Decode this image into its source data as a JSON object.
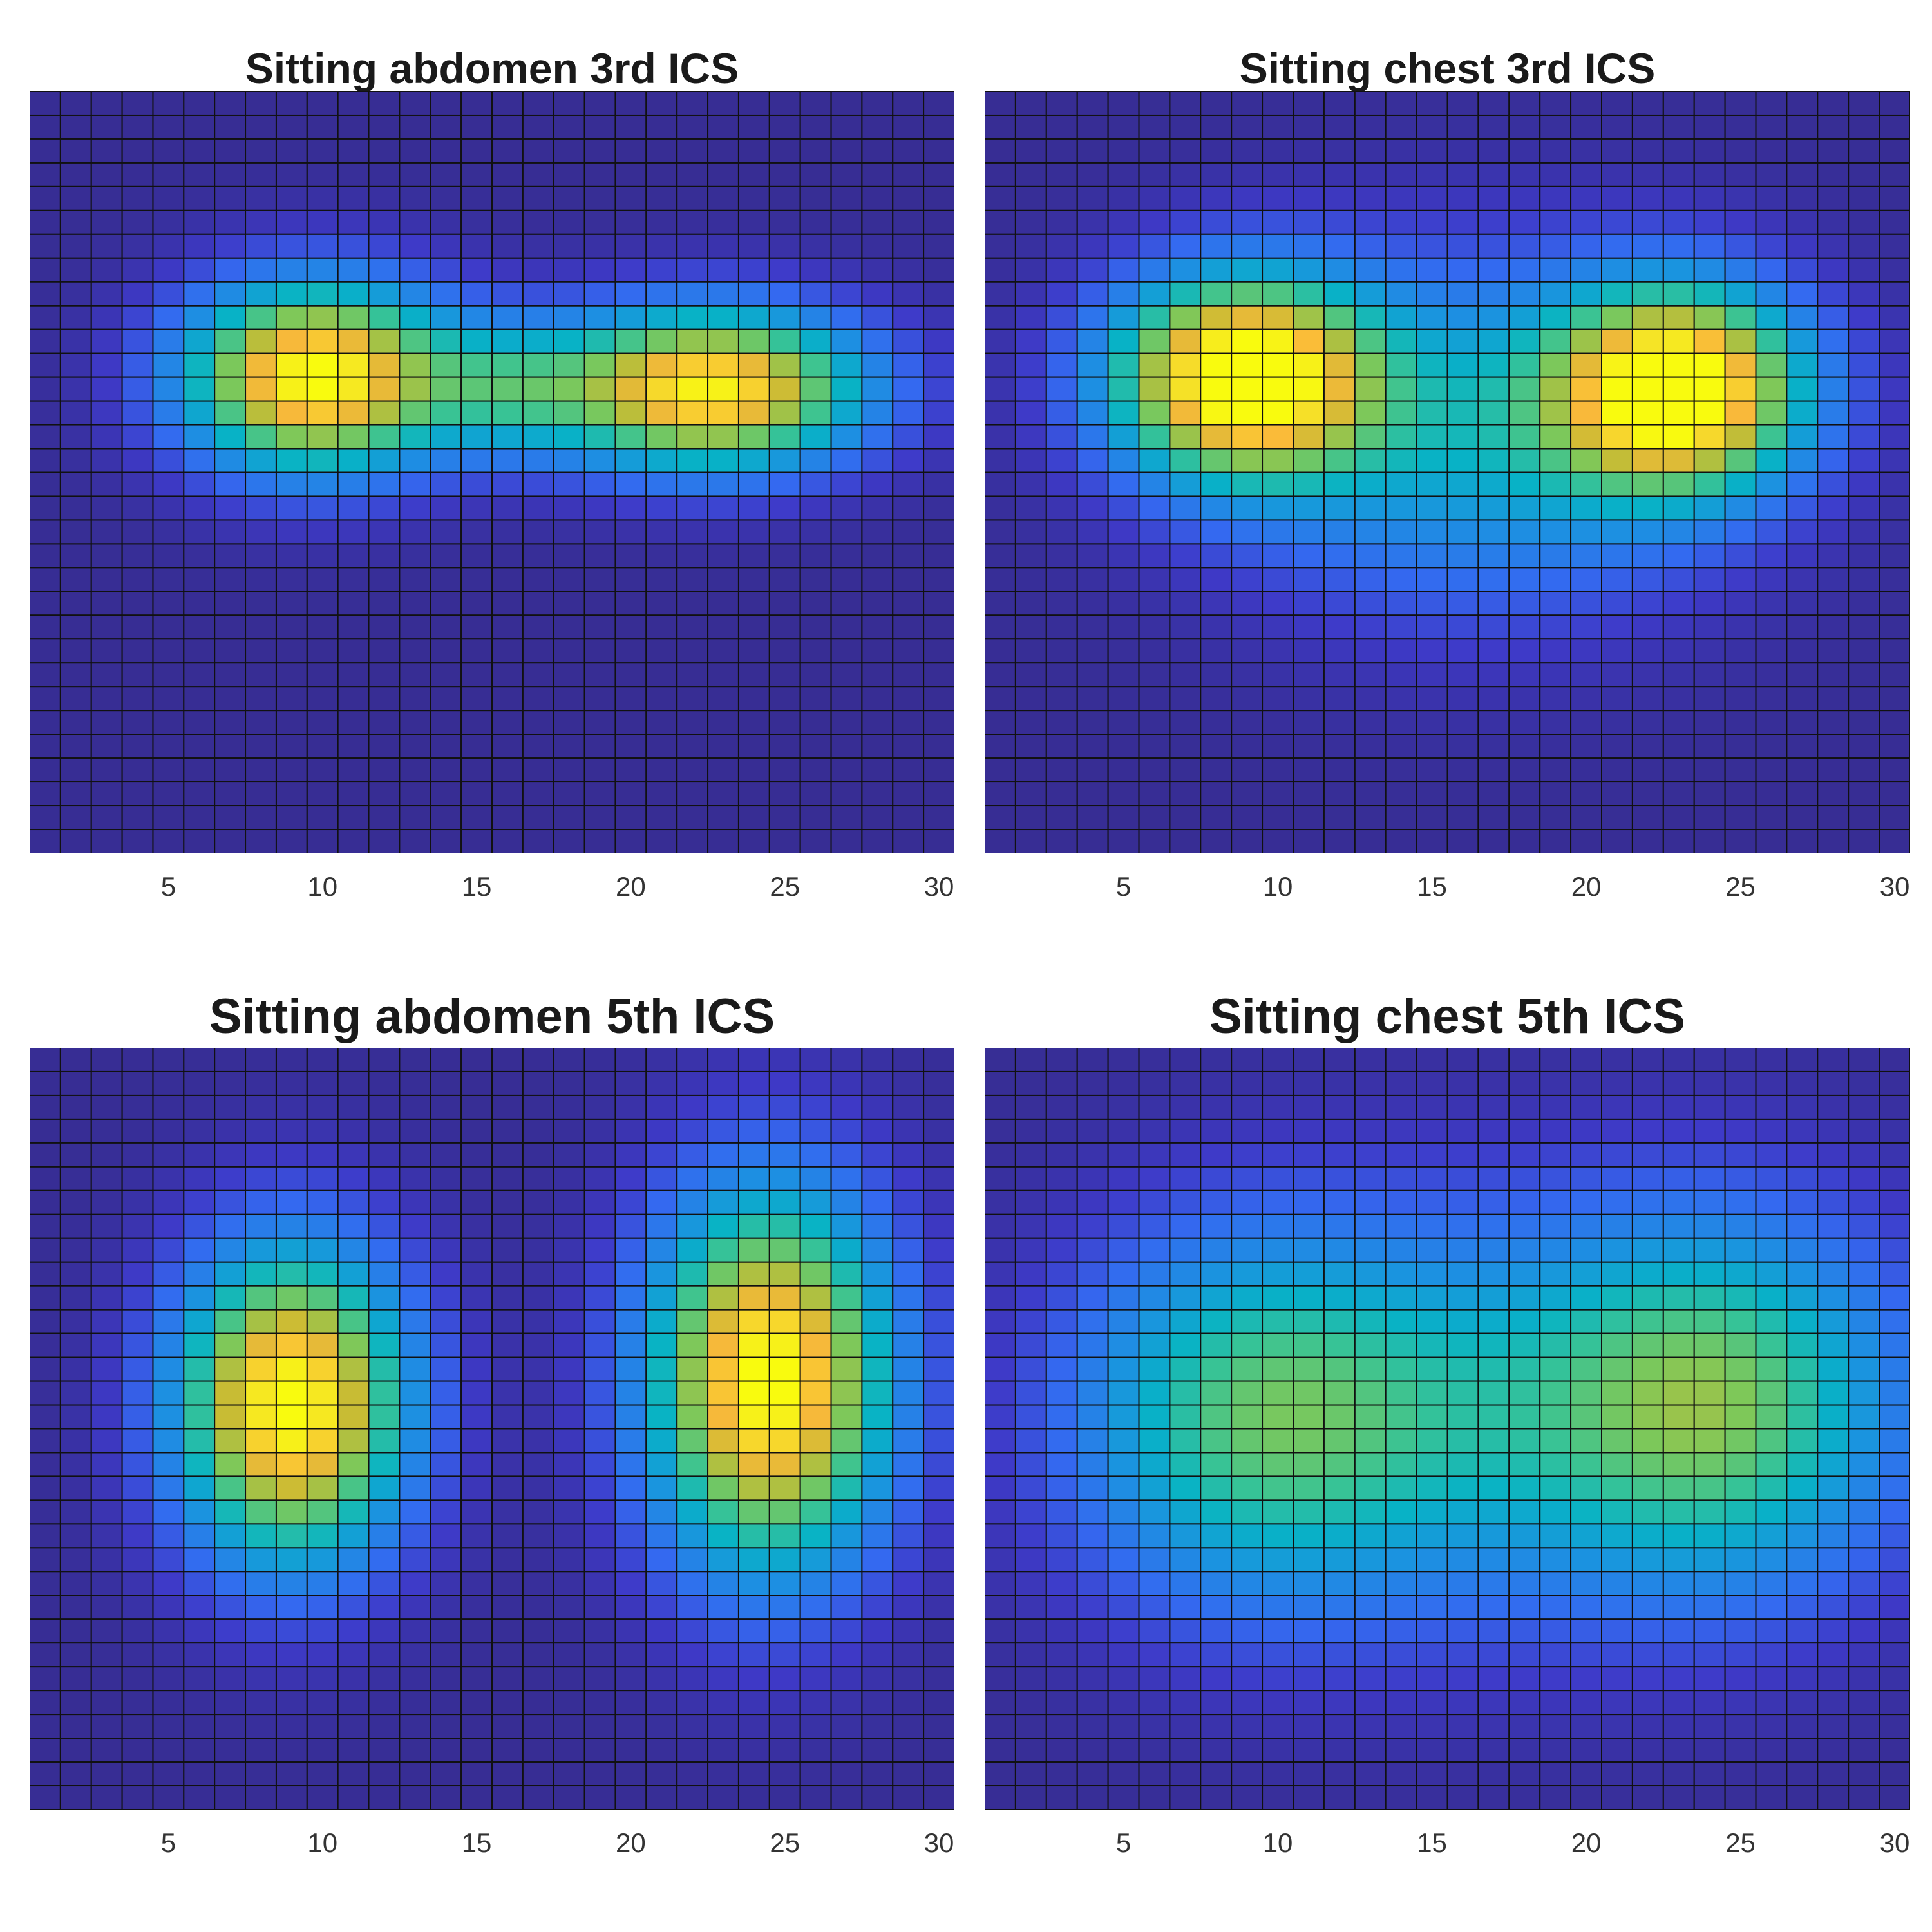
{
  "chart_data": [
    {
      "type": "heatmap",
      "title": "Sitting abdomen 3rd ICS",
      "xlim": [
        0.5,
        30.5
      ],
      "ylim": [
        0.5,
        32.5
      ],
      "grid_size": [
        32,
        30
      ],
      "x_ticks": [
        5,
        10,
        15,
        20,
        25,
        30
      ],
      "x_tick_labels": [
        "5",
        "10",
        "15",
        "20",
        "25",
        "30"
      ],
      "grid": true,
      "colormap": "parula",
      "color_range": [
        0,
        1
      ],
      "blobs": [
        {
          "cx": 9.8,
          "cy": 12.5,
          "sx": 3.8,
          "sy": 3.5,
          "amp": 1.0
        },
        {
          "cx": 22.5,
          "cy": 13.0,
          "sx": 4.5,
          "sy": 3.0,
          "amp": 0.96
        },
        {
          "cx": 16.0,
          "cy": 13.0,
          "sx": 2.5,
          "sy": 2.5,
          "amp": 0.3
        }
      ],
      "background": 0.02
    },
    {
      "type": "heatmap",
      "title": "Sitting chest 3rd ICS",
      "xlim": [
        0.5,
        30.5
      ],
      "ylim": [
        0.5,
        32.5
      ],
      "grid_size": [
        32,
        30
      ],
      "x_ticks": [
        5,
        10,
        15,
        20,
        25,
        30
      ],
      "x_tick_labels": [
        "5",
        "10",
        "15",
        "20",
        "25",
        "30"
      ],
      "grid": true,
      "colormap": "parula",
      "color_range": [
        0,
        1
      ],
      "blobs": [
        {
          "cx": 8.8,
          "cy": 12.5,
          "sx": 3.8,
          "sy": 3.8,
          "amp": 1.0
        },
        {
          "cx": 23.0,
          "cy": 13.0,
          "sx": 3.6,
          "sy": 3.8,
          "amp": 0.98
        },
        {
          "cx": 16.5,
          "cy": 15.0,
          "sx": 7.0,
          "sy": 6.5,
          "amp": 0.38
        }
      ],
      "background": 0.02
    },
    {
      "type": "heatmap",
      "title": "Sitting abdomen 5th ICS",
      "xlim": [
        0.5,
        30.5
      ],
      "ylim": [
        0.5,
        32.5
      ],
      "grid_size": [
        32,
        30
      ],
      "x_ticks": [
        5,
        10,
        15,
        20,
        25,
        30
      ],
      "x_tick_labels": [
        "5",
        "10",
        "15",
        "20",
        "25",
        "30"
      ],
      "grid": true,
      "colormap": "parula",
      "color_range": [
        0,
        1
      ],
      "blobs": [
        {
          "cx": 9.0,
          "cy": 15.5,
          "sx": 3.3,
          "sy": 5.8,
          "amp": 1.0
        },
        {
          "cx": 24.5,
          "cy": 14.5,
          "sx": 3.5,
          "sy": 7.0,
          "amp": 1.0
        }
      ],
      "background": 0.02
    },
    {
      "type": "heatmap",
      "title": "Sitting chest 5th ICS",
      "xlim": [
        0.5,
        30.5
      ],
      "ylim": [
        0.5,
        32.5
      ],
      "grid_size": [
        32,
        30
      ],
      "x_ticks": [
        5,
        10,
        15,
        20,
        25,
        30
      ],
      "x_tick_labels": [
        "5",
        "10",
        "15",
        "20",
        "25",
        "30"
      ],
      "grid": true,
      "colormap": "parula",
      "color_range": [
        0,
        1
      ],
      "blobs": [
        {
          "cx": 9.5,
          "cy": 16.0,
          "sx": 5.5,
          "sy": 7.0,
          "amp": 0.58
        },
        {
          "cx": 24.0,
          "cy": 15.5,
          "sx": 5.5,
          "sy": 7.0,
          "amp": 0.64
        },
        {
          "cx": 16.5,
          "cy": 16.0,
          "sx": 5.0,
          "sy": 8.0,
          "amp": 0.2
        }
      ],
      "background": 0.02
    }
  ]
}
